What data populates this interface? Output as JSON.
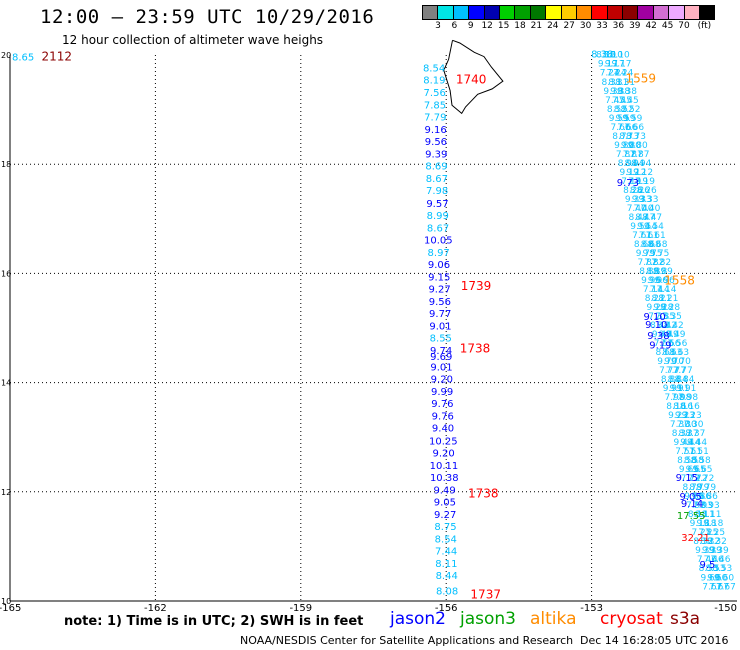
{
  "header": {
    "title": "12:00 – 23:59 UTC 10/29/2016",
    "subtitle": "12 hour collection of altimeter wave heighs"
  },
  "colorbar": {
    "colors": [
      "#808080",
      "#00e5e5",
      "#00bfff",
      "#0000ff",
      "#0000b0",
      "#00d000",
      "#00a000",
      "#007800",
      "#ffff00",
      "#ffcc00",
      "#ff8c00",
      "#ff0000",
      "#c00000",
      "#8b0000",
      "#a000a0",
      "#d26ed2",
      "#eeaaff",
      "#ffb0c0",
      "#000000"
    ],
    "labels": [
      "3",
      "6",
      "9",
      "12",
      "15",
      "18",
      "21",
      "24",
      "27",
      "30",
      "33",
      "36",
      "39",
      "42",
      "45",
      "70",
      "(ft)"
    ]
  },
  "axes": {
    "x_ticks": [
      "-165",
      "-162",
      "-159",
      "-156",
      "-153",
      "-150"
    ],
    "y_ticks": [
      "20",
      "18",
      "16",
      "14",
      "12",
      "10"
    ]
  },
  "track_labels": [
    {
      "text": "2112",
      "lon": -164.35,
      "lat": 19.9,
      "color": "#8b0000"
    },
    {
      "text": "1740",
      "lon": -155.8,
      "lat": 19.48,
      "color": "#ff0000"
    },
    {
      "text": "1739",
      "lon": -155.7,
      "lat": 15.7,
      "color": "#ff0000"
    },
    {
      "text": "1738",
      "lon": -155.72,
      "lat": 14.55,
      "color": "#ff0000"
    },
    {
      "text": "1738",
      "lon": -155.55,
      "lat": 11.9,
      "color": "#ff0000"
    },
    {
      "text": "1737",
      "lon": -155.5,
      "lat": 10.05,
      "color": "#ff0000"
    },
    {
      "text": "1559",
      "lon": -152.3,
      "lat": 19.5,
      "color": "#ff8c00"
    },
    {
      "text": "1558",
      "lon": -151.5,
      "lat": 15.8,
      "color": "#ff8c00"
    }
  ],
  "swh_jason2": [
    {
      "v": "8.54",
      "lat": 19.7,
      "c": "#00bfff"
    },
    {
      "v": "8.19",
      "lat": 19.48,
      "c": "#00bfff"
    },
    {
      "v": "7.56",
      "lat": 19.25,
      "c": "#00bfff"
    },
    {
      "v": "7.85",
      "lat": 19.02,
      "c": "#00bfff"
    },
    {
      "v": "7.79",
      "lat": 18.8,
      "c": "#00bfff"
    },
    {
      "v": "9.16",
      "lat": 18.57,
      "c": "#0000ff"
    },
    {
      "v": "9.56",
      "lat": 18.35,
      "c": "#0000ff"
    },
    {
      "v": "9.39",
      "lat": 18.12,
      "c": "#0000ff"
    },
    {
      "v": "8.69",
      "lat": 17.9,
      "c": "#00bfff"
    },
    {
      "v": "8.67",
      "lat": 17.67,
      "c": "#00bfff"
    },
    {
      "v": "7.98",
      "lat": 17.45,
      "c": "#00bfff"
    },
    {
      "v": "9.57",
      "lat": 17.22,
      "c": "#0000ff"
    },
    {
      "v": "8.99",
      "lat": 17.0,
      "c": "#00bfff"
    },
    {
      "v": "8.67",
      "lat": 16.77,
      "c": "#00bfff"
    },
    {
      "v": "10.05",
      "lat": 16.55,
      "c": "#0000ff"
    },
    {
      "v": "8.97",
      "lat": 16.32,
      "c": "#00bfff"
    },
    {
      "v": "9.06",
      "lat": 16.1,
      "c": "#0000ff"
    },
    {
      "v": "9.15",
      "lat": 15.87,
      "c": "#0000ff"
    },
    {
      "v": "9.27",
      "lat": 15.65,
      "c": "#0000ff"
    },
    {
      "v": "9.56",
      "lat": 15.42,
      "c": "#0000ff"
    },
    {
      "v": "9.77",
      "lat": 15.2,
      "c": "#0000ff"
    },
    {
      "v": "9.01",
      "lat": 14.97,
      "c": "#0000ff"
    },
    {
      "v": "8.55",
      "lat": 14.75,
      "c": "#00bfff"
    },
    {
      "v": "9.74",
      "lat": 14.52,
      "c": "#0000ff"
    },
    {
      "v": "9.69",
      "lat": 14.41,
      "c": "#0000ff"
    },
    {
      "v": "9.01",
      "lat": 14.22,
      "c": "#0000ff"
    },
    {
      "v": "9.20",
      "lat": 14.0,
      "c": "#0000ff"
    },
    {
      "v": "9.99",
      "lat": 13.77,
      "c": "#0000ff"
    },
    {
      "v": "9.76",
      "lat": 13.55,
      "c": "#0000ff"
    },
    {
      "v": "9.76",
      "lat": 13.32,
      "c": "#0000ff"
    },
    {
      "v": "9.40",
      "lat": 13.1,
      "c": "#0000ff"
    },
    {
      "v": "10.25",
      "lat": 12.87,
      "c": "#0000ff"
    },
    {
      "v": "9.20",
      "lat": 12.65,
      "c": "#0000ff"
    },
    {
      "v": "10.11",
      "lat": 12.42,
      "c": "#0000ff"
    },
    {
      "v": "10.38",
      "lat": 12.2,
      "c": "#0000ff"
    },
    {
      "v": "9.49",
      "lat": 11.97,
      "c": "#0000ff"
    },
    {
      "v": "9.05",
      "lat": 11.75,
      "c": "#0000ff"
    },
    {
      "v": "9.27",
      "lat": 11.52,
      "c": "#0000ff"
    },
    {
      "v": "8.75",
      "lat": 11.3,
      "c": "#00bfff"
    },
    {
      "v": "8.54",
      "lat": 11.07,
      "c": "#00bfff"
    },
    {
      "v": "7.44",
      "lat": 10.85,
      "c": "#00bfff"
    },
    {
      "v": "8.11",
      "lat": 10.62,
      "c": "#00bfff"
    },
    {
      "v": "8.44",
      "lat": 10.4,
      "c": "#00bfff"
    },
    {
      "v": "8.08",
      "lat": 10.12,
      "c": "#00bfff"
    }
  ],
  "swh_east": [
    {
      "v": "8.38",
      "lat": 19.95,
      "c": "#00bfff"
    },
    {
      "v": "9.73",
      "lat": 17.6,
      "c": "#0000ff"
    },
    {
      "v": "9.10",
      "lat": 15.15,
      "c": "#0000ff"
    },
    {
      "v": "9.10",
      "lat": 15.0,
      "c": "#0000ff"
    },
    {
      "v": "9.38",
      "lat": 14.8,
      "c": "#0000ff"
    },
    {
      "v": "9.19",
      "lat": 14.62,
      "c": "#0000ff"
    },
    {
      "v": "9.15",
      "lat": 12.2,
      "c": "#0000ff"
    },
    {
      "v": "9.05",
      "lat": 11.85,
      "c": "#0000ff"
    },
    {
      "v": "9.14",
      "lat": 11.72,
      "c": "#0000ff"
    },
    {
      "v": "17.55",
      "lat": 11.5,
      "c": "#00a000"
    },
    {
      "v": "32.21",
      "lat": 11.1,
      "c": "#ff0000"
    },
    {
      "v": "9.5",
      "lat": 10.6,
      "c": "#0000ff"
    }
  ],
  "footer": {
    "note": "note:  1) Time is in UTC;  2) SWH is in feet",
    "satellites": [
      {
        "name": "jason2",
        "color": "#0000ff"
      },
      {
        "name": "jason3",
        "color": "#00a000"
      },
      {
        "name": "altika",
        "color": "#ff8c00"
      },
      {
        "name": "cryosat",
        "color": "#ff0000"
      },
      {
        "name": "s3a",
        "color": "#8b0000"
      }
    ],
    "credit_org": "NOAA/NESDIS Center for Satellite Applications and Research",
    "credit_date": "Dec 14 16:28:05 UTC 2016"
  }
}
